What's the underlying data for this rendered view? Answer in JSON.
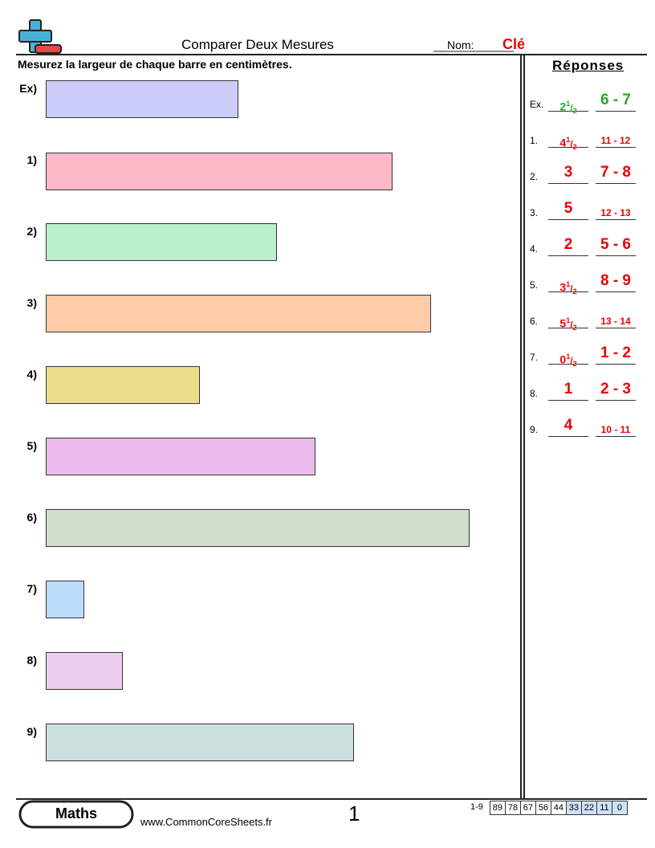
{
  "header": {
    "title": "Comparer Deux Mesures",
    "name_label": "Nom:",
    "name_value": "Clé"
  },
  "instructions": "Mesurez la largeur de chaque barre en centimètres.",
  "problems": [
    {
      "label": "Ex)"
    },
    {
      "label": "1)"
    },
    {
      "label": "2)"
    },
    {
      "label": "3)"
    },
    {
      "label": "4)"
    },
    {
      "label": "5)"
    },
    {
      "label": "6)"
    },
    {
      "label": "7)"
    },
    {
      "label": "8)"
    },
    {
      "label": "9)"
    }
  ],
  "answers": {
    "title": "Réponses",
    "items": [
      {
        "label": "Ex.",
        "whole": "2",
        "numerator": "1",
        "denominator": "2",
        "range": "6 - 7"
      },
      {
        "label": "1.",
        "whole": "4",
        "numerator": "1",
        "denominator": "2",
        "range": "11 - 12"
      },
      {
        "label": "2.",
        "whole": "3",
        "range": "7 - 8"
      },
      {
        "label": "3.",
        "whole": "5",
        "range": "12 - 13"
      },
      {
        "label": "4.",
        "whole": "2",
        "range": "5 - 6"
      },
      {
        "label": "5.",
        "whole": "3",
        "numerator": "1",
        "denominator": "2",
        "range": "8 - 9"
      },
      {
        "label": "6.",
        "whole": "5",
        "numerator": "1",
        "denominator": "2",
        "range": "13 - 14"
      },
      {
        "label": "7.",
        "whole": "0",
        "numerator": "1",
        "denominator": "2",
        "range": "1 - 2"
      },
      {
        "label": "8.",
        "whole": "1",
        "range": "2 - 3"
      },
      {
        "label": "9.",
        "whole": "4",
        "range": "10 - 11"
      }
    ]
  },
  "footer": {
    "subject": "Maths",
    "url": "www.CommonCoreSheets.fr",
    "page": "1",
    "score_label": "1-9",
    "scores": [
      89,
      78,
      67,
      56,
      44,
      33,
      22,
      11,
      0
    ]
  }
}
